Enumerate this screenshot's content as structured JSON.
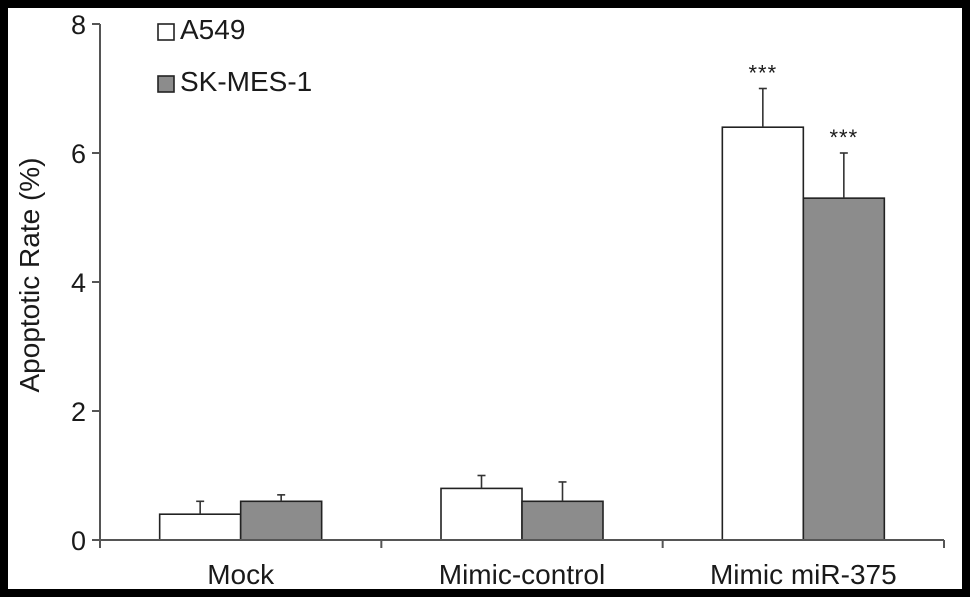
{
  "chart_data": {
    "type": "bar",
    "ylabel": "Apoptotic Rate (%)",
    "ylim": [
      0,
      8
    ],
    "yticks": [
      0,
      2,
      4,
      6,
      8
    ],
    "grid": false,
    "legend_position": "top-left",
    "categories": [
      "Mock",
      "Mimic-control",
      "Mimic miR-375"
    ],
    "series": [
      {
        "name": "A549",
        "color": "#ffffff",
        "values": [
          0.4,
          0.8,
          6.4
        ],
        "errors": [
          0.2,
          0.2,
          0.6
        ],
        "annotations": [
          "",
          "",
          "***"
        ]
      },
      {
        "name": "SK-MES-1",
        "color": "#8c8c8c",
        "values": [
          0.6,
          0.6,
          5.3
        ],
        "errors": [
          0.1,
          0.3,
          0.7
        ],
        "annotations": [
          "",
          "",
          "***"
        ]
      }
    ]
  }
}
